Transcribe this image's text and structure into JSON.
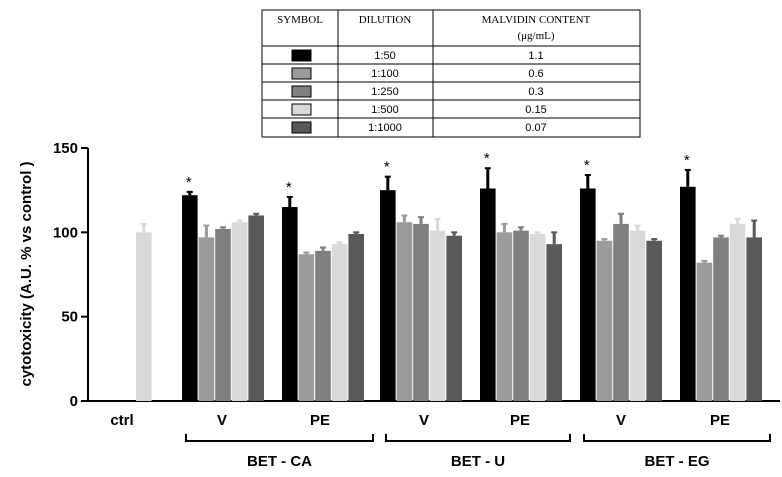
{
  "chart_data": {
    "type": "bar",
    "ylabel": "cytotoxicity (A.U. % vs control )",
    "ylim": [
      0,
      150
    ],
    "yticks": [
      0,
      50,
      100,
      150
    ],
    "categories": [
      "ctrl",
      "V",
      "PE",
      "V",
      "PE",
      "V",
      "PE"
    ],
    "groups": [
      {
        "label": "BET - CA",
        "categories": [
          1,
          2
        ]
      },
      {
        "label": "BET - U",
        "categories": [
          3,
          4
        ]
      },
      {
        "label": "BET - EG",
        "categories": [
          5,
          6
        ]
      }
    ],
    "series": [
      {
        "name": "1:50",
        "color": "#000000",
        "values": [
          null,
          122,
          115,
          125,
          126,
          126,
          127
        ],
        "errors": [
          null,
          2,
          6,
          8,
          12,
          8,
          10
        ],
        "significant": [
          false,
          true,
          true,
          true,
          true,
          true,
          true
        ]
      },
      {
        "name": "1:100",
        "color": "#9b9b9b",
        "values": [
          null,
          97,
          87,
          106,
          100,
          95,
          82
        ],
        "errors": [
          null,
          7,
          1,
          4,
          5,
          1,
          1
        ],
        "significant": [
          false,
          false,
          false,
          false,
          false,
          false,
          false
        ]
      },
      {
        "name": "1:250",
        "color": "#7f7f7f",
        "values": [
          null,
          102,
          89,
          105,
          101,
          105,
          97
        ],
        "errors": [
          null,
          1,
          2,
          4,
          2,
          6,
          1
        ],
        "significant": [
          false,
          false,
          false,
          false,
          false,
          false,
          false
        ]
      },
      {
        "name": "1:500",
        "color": "#d9d9d9",
        "values": [
          100,
          106,
          93,
          101,
          99,
          101,
          105
        ],
        "errors": [
          5,
          1,
          1,
          7,
          1,
          3,
          3
        ],
        "significant": [
          false,
          false,
          false,
          false,
          false,
          false,
          false
        ]
      },
      {
        "name": "1:1000",
        "color": "#595959",
        "values": [
          null,
          110,
          99,
          98,
          93,
          95,
          97
        ],
        "errors": [
          null,
          1,
          1,
          2,
          7,
          1,
          10
        ],
        "significant": [
          false,
          false,
          false,
          false,
          false,
          false,
          false
        ]
      }
    ],
    "significance_marker": "*",
    "legend_table": {
      "headers": [
        "SYMBOL",
        "DILUTION",
        "MALVIDIN CONTENT",
        "(μg/mL)"
      ],
      "rows": [
        {
          "dilution": "1:50",
          "content": "1.1"
        },
        {
          "dilution": "1:100",
          "content": "0.6"
        },
        {
          "dilution": "1:250",
          "content": "0.3"
        },
        {
          "dilution": "1:500",
          "content": "0.15"
        },
        {
          "dilution": "1:1000",
          "content": "0.07"
        }
      ]
    }
  }
}
